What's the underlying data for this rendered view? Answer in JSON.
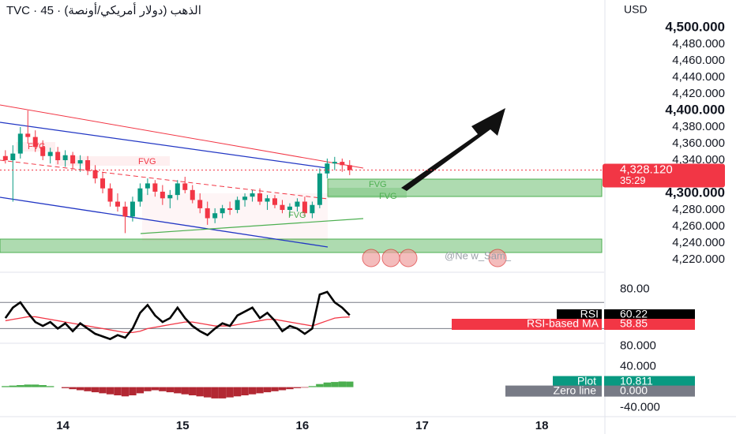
{
  "header": {
    "symbol_line": "TVC · 45 · الذهب (دولار أمريكي/أونصة)",
    "currency": "USD",
    "countdown": "35:29",
    "watermark": "@Ne w_Sam_"
  },
  "chart_data": [
    {
      "type": "candlestick",
      "x": [
        13.52,
        13.5825,
        13.645,
        13.7075,
        13.77,
        13.8325,
        13.895,
        13.9575,
        14.02,
        14.0825,
        14.145,
        14.2075,
        14.27,
        14.3325,
        14.395,
        14.4575,
        14.52,
        14.5825,
        14.645,
        14.7075,
        14.77,
        14.8325,
        14.895,
        14.9575,
        15.02,
        15.0825,
        15.145,
        15.2075,
        15.27,
        15.3325,
        15.395,
        15.4575,
        15.52,
        15.5825,
        15.645,
        15.7075,
        15.77,
        15.8325,
        15.895,
        15.9575,
        16.02,
        16.0825,
        16.145,
        16.2075,
        16.27,
        16.3325,
        16.395
      ],
      "open": [
        4345,
        4340,
        4348,
        4372,
        4368,
        4356,
        4345,
        4350,
        4340,
        4346,
        4336,
        4340,
        4328,
        4318,
        4306,
        4290,
        4284,
        4272,
        4290,
        4306,
        4312,
        4302,
        4294,
        4298,
        4312,
        4304,
        4292,
        4282,
        4270,
        4276,
        4282,
        4280,
        4292,
        4296,
        4300,
        4290,
        4294,
        4286,
        4280,
        4284,
        4290,
        4276,
        4286,
        4324,
        4336,
        4338,
        4334
      ],
      "high": [
        4352,
        4358,
        4380,
        4400,
        4376,
        4364,
        4355,
        4356,
        4352,
        4350,
        4346,
        4345,
        4334,
        4326,
        4312,
        4300,
        4290,
        4296,
        4312,
        4318,
        4316,
        4310,
        4304,
        4316,
        4320,
        4310,
        4300,
        4290,
        4282,
        4286,
        4290,
        4296,
        4300,
        4304,
        4306,
        4298,
        4298,
        4292,
        4288,
        4294,
        4296,
        4290,
        4330,
        4342,
        4344,
        4342,
        4340
      ],
      "low": [
        4336,
        4290,
        4342,
        4360,
        4350,
        4340,
        4336,
        4335,
        4332,
        4330,
        4326,
        4322,
        4312,
        4300,
        4284,
        4278,
        4252,
        4266,
        4284,
        4298,
        4296,
        4286,
        4282,
        4292,
        4300,
        4288,
        4276,
        4262,
        4264,
        4270,
        4274,
        4276,
        4284,
        4290,
        4286,
        4280,
        4282,
        4276,
        4272,
        4278,
        4272,
        4270,
        4282,
        4318,
        4328,
        4326,
        4322
      ],
      "close": [
        4340,
        4348,
        4372,
        4368,
        4356,
        4345,
        4350,
        4340,
        4346,
        4336,
        4340,
        4328,
        4318,
        4306,
        4290,
        4284,
        4272,
        4290,
        4306,
        4312,
        4302,
        4294,
        4298,
        4312,
        4304,
        4292,
        4282,
        4270,
        4276,
        4282,
        4280,
        4292,
        4296,
        4300,
        4290,
        4294,
        4286,
        4280,
        4284,
        4290,
        4276,
        4286,
        4324,
        4336,
        4338,
        4334,
        4328.12
      ],
      "last_label": "4,328.120",
      "up_color": "#089981",
      "down_color": "#f23645",
      "xlim": [
        13.475,
        18.52
      ],
      "xticks": [
        14,
        15,
        16,
        17,
        18
      ],
      "ylim": [
        4204.8,
        4533.3
      ],
      "yticks": [
        {
          "value": 4220,
          "label": "4,220.000"
        },
        {
          "value": 4240,
          "label": "4,240.000"
        },
        {
          "value": 4260,
          "label": "4,260.000"
        },
        {
          "value": 4280,
          "label": "4,280.000"
        },
        {
          "value": 4300,
          "label": "4,300.000"
        },
        {
          "value": 4320,
          "label": "4,320.000"
        },
        {
          "value": 4340,
          "label": "4,340.000"
        },
        {
          "value": 4360,
          "label": "4,360.000"
        },
        {
          "value": 4380,
          "label": "4,380.000"
        },
        {
          "value": 4400,
          "label": "4,400.000"
        },
        {
          "value": 4420,
          "label": "4,420.000"
        },
        {
          "value": 4440,
          "label": "4,440.000"
        },
        {
          "value": 4460,
          "label": "4,460.000"
        },
        {
          "value": 4480,
          "label": "4,480.000"
        },
        {
          "value": 4500,
          "label": "4,500.000"
        }
      ],
      "annotations": [
        "FVG",
        "FVG",
        "FVG",
        "FVG",
        "FVG"
      ]
    },
    {
      "type": "line",
      "series": [
        {
          "name": "RSI",
          "color": "#000000",
          "values": [
            58,
            66,
            70,
            62,
            55,
            52,
            55,
            50,
            54,
            48,
            54,
            50,
            46,
            44,
            42,
            45,
            43,
            50,
            62,
            68,
            60,
            55,
            58,
            66,
            58,
            52,
            48,
            45,
            50,
            54,
            52,
            60,
            63,
            66,
            58,
            62,
            56,
            48,
            52,
            50,
            46,
            50,
            76,
            78,
            70,
            66,
            60.22
          ]
        },
        {
          "name": "RSI-based MA",
          "color": "#f23645",
          "values": [
            56,
            57,
            58,
            59,
            59,
            58,
            57,
            56,
            55,
            54,
            53,
            52,
            51,
            50,
            49,
            48,
            47,
            47,
            48,
            50,
            51,
            52,
            53,
            54,
            55,
            55,
            54,
            53,
            52,
            52,
            52,
            53,
            54,
            55,
            56,
            57,
            57,
            56,
            55,
            54,
            53,
            52,
            54,
            56,
            58,
            58.6,
            58.85
          ]
        }
      ],
      "bands": [
        70,
        50
      ],
      "ylim": [
        40,
        93
      ],
      "yticks": [
        {
          "value": 80,
          "label": "80.00"
        }
      ]
    },
    {
      "type": "bar",
      "series": [
        {
          "name": "Plot",
          "values": [
            2,
            3,
            4,
            5,
            5,
            4,
            2,
            0,
            -2,
            -4,
            -6,
            -8,
            -10,
            -12,
            -14,
            -16,
            -18,
            -16,
            -12,
            -8,
            -6,
            -8,
            -10,
            -12,
            -14,
            -16,
            -18,
            -20,
            -22,
            -22,
            -20,
            -18,
            -16,
            -14,
            -12,
            -10,
            -8,
            -6,
            -4,
            -2,
            -1,
            2,
            6,
            9,
            10,
            11,
            10.811
          ]
        }
      ],
      "positive_color": "#4caf50",
      "negative_color": "#b22833",
      "zero_line": {
        "name": "Zero line",
        "value": 0,
        "label": "0.000"
      },
      "ylim": [
        -56,
        84
      ],
      "yticks": [
        {
          "value": 80,
          "label": "80.000"
        },
        {
          "value": 40,
          "label": "40.000"
        },
        {
          "value": -40,
          "label": "-40.000"
        }
      ]
    }
  ]
}
